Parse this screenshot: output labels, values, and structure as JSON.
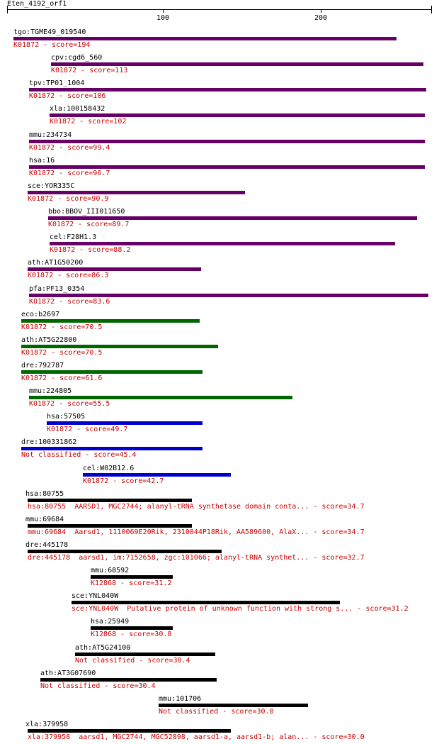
{
  "chart_data": {
    "type": "alignment-hits",
    "query": "Eten_4192_orf1",
    "axis": {
      "min": 1,
      "max": 270,
      "ticks": [
        100,
        200
      ]
    },
    "colors": {
      "purple": "#660066",
      "green": "#006600",
      "blue": "#0000cc",
      "black": "#000000",
      "desc": "#cc0000"
    },
    "hits": [
      {
        "name": "tgo:TGME49_019540",
        "desc": "K01872 - score=194",
        "start": 5,
        "end": 248,
        "color": "purple"
      },
      {
        "name": "cpv:cgd6_560",
        "desc": "K01872 - score=113",
        "start": 29,
        "end": 265,
        "color": "purple"
      },
      {
        "name": "tpv:TP01_1004",
        "desc": "K01872 - score=106",
        "start": 15,
        "end": 267,
        "color": "purple"
      },
      {
        "name": "xla:100158432",
        "desc": "K01872 - score=102",
        "start": 28,
        "end": 266,
        "color": "purple"
      },
      {
        "name": "mmu:234734",
        "desc": "K01872 - score=99.4",
        "start": 15,
        "end": 266,
        "color": "purple"
      },
      {
        "name": "hsa:16",
        "desc": "K01872 - score=96.7",
        "start": 15,
        "end": 266,
        "color": "purple"
      },
      {
        "name": "sce:YOR335C",
        "desc": "K01872 - score=90.9",
        "start": 14,
        "end": 152,
        "color": "purple"
      },
      {
        "name": "bbo:BBOV_III011650",
        "desc": "K01872 - score=89.7",
        "start": 27,
        "end": 261,
        "color": "purple"
      },
      {
        "name": "cel:F28H1.3",
        "desc": "K01872 - score=88.2",
        "start": 28,
        "end": 247,
        "color": "purple"
      },
      {
        "name": "ath:AT1G50200",
        "desc": "K01872 - score=86.3",
        "start": 14,
        "end": 124,
        "color": "purple"
      },
      {
        "name": "pfa:PF13_0354",
        "desc": "K01872 - score=83.6",
        "start": 15,
        "end": 268,
        "color": "purple"
      },
      {
        "name": "eco:b2697",
        "desc": "K01872 - score=70.5",
        "start": 10,
        "end": 123,
        "color": "green"
      },
      {
        "name": "ath:AT5G22800",
        "desc": "K01872 - score=70.5",
        "start": 10,
        "end": 135,
        "color": "green"
      },
      {
        "name": "dre:792787",
        "desc": "K01872 - score=61.6",
        "start": 10,
        "end": 125,
        "color": "green"
      },
      {
        "name": "mmu:224805",
        "desc": "K01872 - score=55.5",
        "start": 15,
        "end": 182,
        "color": "green"
      },
      {
        "name": "hsa:57505",
        "desc": "K01872 - score=49.7",
        "start": 26,
        "end": 125,
        "color": "blue"
      },
      {
        "name": "dre:100331862",
        "desc": "Not classified - score=45.4",
        "start": 10,
        "end": 125,
        "color": "blue"
      },
      {
        "name": "cel:W02B12.6",
        "desc": "K01872 - score=42.7",
        "start": 49,
        "end": 143,
        "color": "blue"
      },
      {
        "name": "hsa:80755",
        "desc": "hsa:80755  AARSD1, MGC2744; alanyl-tRNA synthetase domain conta... - score=34.7",
        "start": 14,
        "end": 118,
        "color": "black",
        "name_offset": -3
      },
      {
        "name": "mmu:69684",
        "desc": "mmu:69684  Aarsd1, 1110069E20Rik, 2310044P18Rik, AA589600, AlaX... - score=34.7",
        "start": 14,
        "end": 118,
        "color": "black",
        "name_offset": -3
      },
      {
        "name": "dre:445178",
        "desc": "dre:445178  aarsd1, im:7152658, zgc:101066; alanyl-tRNA synthet... - score=32.7",
        "start": 14,
        "end": 137,
        "color": "black",
        "name_offset": -3
      },
      {
        "name": "mmu:68592",
        "desc": "K12868 - score=31.2",
        "start": 54,
        "end": 106,
        "color": "black"
      },
      {
        "name": "sce:YNL040W",
        "desc": "sce:YNL040W  Putative protein of unknown function with strong s... - score=31.2",
        "start": 42,
        "end": 212,
        "color": "black"
      },
      {
        "name": "hsa:25949",
        "desc": "K12868 - score=30.8",
        "start": 54,
        "end": 106,
        "color": "black"
      },
      {
        "name": "ath:AT5G24100",
        "desc": "Not classified - score=30.4",
        "start": 44,
        "end": 133,
        "color": "black"
      },
      {
        "name": "ath:AT3G07690",
        "desc": "Not classified - score=30.4",
        "start": 22,
        "end": 134,
        "color": "black"
      },
      {
        "name": "mmu:101706",
        "desc": "Not classified - score=30.0",
        "start": 97,
        "end": 192,
        "color": "black"
      },
      {
        "name": "xla:379958",
        "desc": "xla:379958  aarsd1, MGC2744, MGC52898, aarsd1-a, aarsd1-b; alan... - score=30.0",
        "start": 14,
        "end": 143,
        "color": "black",
        "name_offset": -3
      }
    ]
  }
}
